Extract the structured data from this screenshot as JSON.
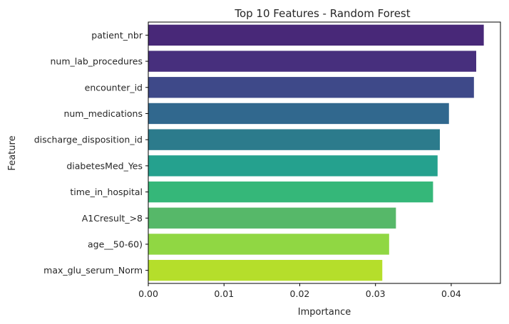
{
  "chart_data": {
    "type": "bar",
    "orientation": "horizontal",
    "title": "Top 10 Features - Random Forest",
    "xlabel": "Importance",
    "ylabel": "Feature",
    "xlim": [
      0.0,
      0.0465
    ],
    "xticks": [
      0.0,
      0.01,
      0.02,
      0.03,
      0.04
    ],
    "xtick_labels": [
      "0.00",
      "0.01",
      "0.02",
      "0.03",
      "0.04"
    ],
    "grid": false,
    "categories": [
      "patient_nbr",
      "num_lab_procedures",
      "encounter_id",
      "num_medications",
      "discharge_disposition_id",
      "diabetesMed_Yes",
      "time_in_hospital",
      "A1Cresult_>8",
      "age__50-60)",
      "max_glu_serum_Norm"
    ],
    "values": [
      0.0443,
      0.0433,
      0.043,
      0.0397,
      0.0385,
      0.0382,
      0.0376,
      0.0327,
      0.0318,
      0.0309
    ],
    "colors": [
      "#482878",
      "#472f7d",
      "#3e4989",
      "#31688e",
      "#2c7b8c",
      "#25a18e",
      "#35b779",
      "#56b869",
      "#90d743",
      "#b5de2b"
    ]
  }
}
